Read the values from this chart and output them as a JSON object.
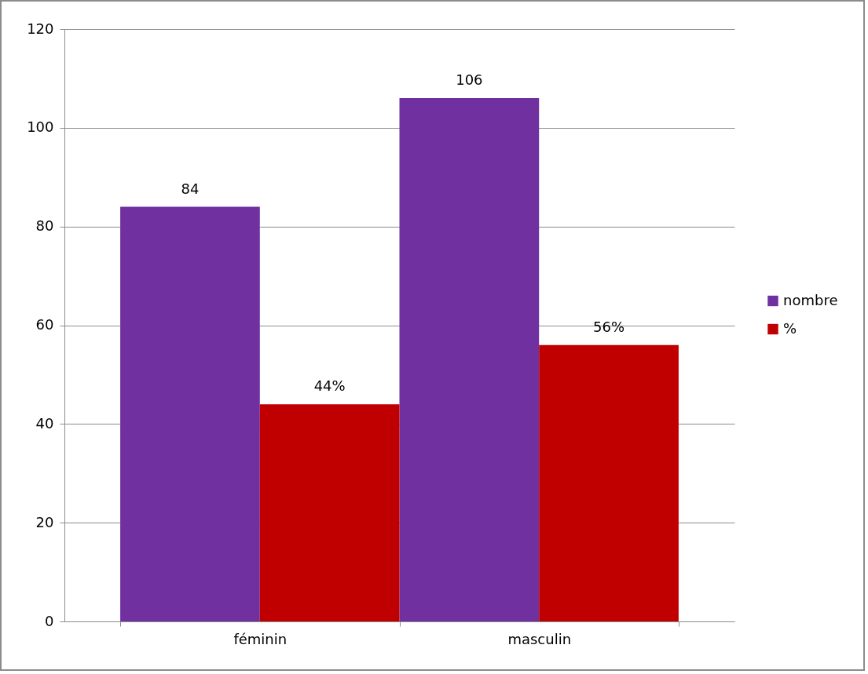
{
  "chart_data": {
    "type": "bar",
    "categories": [
      "féminin",
      "masculin"
    ],
    "series": [
      {
        "name": "nombre",
        "color": "#7030a0",
        "values": [
          84,
          106
        ],
        "value_labels": [
          "84",
          "106"
        ]
      },
      {
        "name": "%",
        "color": "#c00000",
        "values": [
          44,
          56
        ],
        "value_labels": [
          "44%",
          "56%"
        ]
      }
    ],
    "ylim": [
      0,
      120
    ],
    "yticks": [
      0,
      20,
      40,
      60,
      80,
      100,
      120
    ],
    "grid": "y",
    "legend": "right"
  }
}
